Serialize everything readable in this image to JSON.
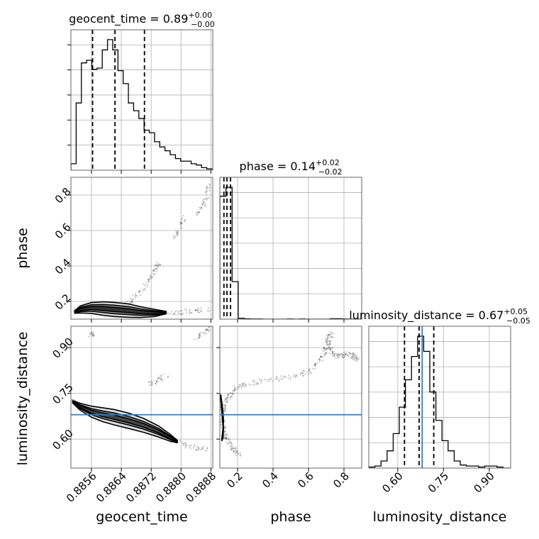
{
  "chart_data": {
    "type": "corner",
    "parameters": [
      "geocent_time",
      "phase",
      "luminosity_distance"
    ],
    "truth_color": "#3b7bbf",
    "truths": {
      "luminosity_distance": 0.68
    },
    "grid": true,
    "axes": {
      "geocent_time": {
        "range": [
          0.88505,
          0.88885
        ],
        "ticks": [
          0.8856,
          0.8864,
          0.8872,
          0.888,
          0.8888
        ],
        "tick_labels": [
          "0.8856",
          "0.8864",
          "0.8872",
          "0.8880",
          "0.8888"
        ]
      },
      "phase": {
        "range": [
          0.1,
          0.9
        ],
        "ticks": [
          0.2,
          0.4,
          0.6,
          0.8
        ],
        "tick_labels": [
          "0.2",
          "0.4",
          "0.6",
          "0.8"
        ]
      },
      "luminosity_distance": {
        "range": [
          0.505,
          0.97
        ],
        "ticks": [
          0.6,
          0.75,
          0.9
        ],
        "tick_labels": [
          "0.60",
          "0.75",
          "0.90"
        ]
      }
    },
    "diagonal": [
      {
        "parameter": "geocent_time",
        "title": "geocent_time = 0.89",
        "sup": "+0.00",
        "sub": "−0.00",
        "quantiles": [
          0.88563,
          0.88623,
          0.88702
        ],
        "bin_edges": [
          0.88505,
          0.88519,
          0.88533,
          0.88547,
          0.88561,
          0.88575,
          0.88589,
          0.88603,
          0.88617,
          0.88631,
          0.88645,
          0.88659,
          0.88673,
          0.88687,
          0.88701,
          0.88715,
          0.88729,
          0.88743,
          0.88757,
          0.88771,
          0.88785,
          0.88799,
          0.88813,
          0.88827,
          0.88841,
          0.88855,
          0.88869,
          0.88885
        ],
        "counts": [
          5,
          52,
          83,
          85,
          78,
          79,
          93,
          101,
          93,
          77,
          67,
          52,
          46,
          40,
          31,
          29,
          22,
          18,
          15,
          12,
          9,
          7,
          7,
          5,
          4,
          2,
          1
        ]
      },
      {
        "parameter": "phase",
        "title": "phase = 0.14",
        "sup": "+0.02",
        "sub": "−0.02",
        "quantiles": [
          0.123,
          0.14,
          0.16
        ],
        "bin_edges": [
          0.1,
          0.1345,
          0.169,
          0.2035,
          0.238,
          0.2725,
          0.307,
          0.3415,
          0.376,
          0.4105,
          0.445,
          0.4795,
          0.514,
          0.5485,
          0.583,
          0.6175,
          0.652,
          0.6865,
          0.721,
          0.7555,
          0.79,
          0.8245,
          0.859,
          0.9
        ],
        "counts": [
          820,
          880,
          250,
          6,
          2,
          1,
          1,
          0,
          0,
          0,
          0,
          1,
          0,
          1,
          0,
          0,
          0,
          0,
          3,
          3,
          1,
          0,
          0
        ]
      },
      {
        "parameter": "luminosity_distance",
        "title": "luminosity_distance = 0.67",
        "sup": "+0.05",
        "sub": "−0.05",
        "quantiles": [
          0.622,
          0.67,
          0.718
        ],
        "bin_edges": [
          0.505,
          0.525,
          0.545,
          0.565,
          0.585,
          0.605,
          0.625,
          0.645,
          0.665,
          0.685,
          0.705,
          0.725,
          0.745,
          0.765,
          0.785,
          0.805,
          0.825,
          0.845,
          0.865,
          0.885,
          0.905,
          0.925,
          0.945,
          0.97
        ],
        "counts": [
          1,
          2,
          7,
          17,
          34,
          60,
          87,
          110,
          130,
          115,
          75,
          47,
          27,
          17,
          7,
          3,
          2,
          2,
          1,
          2,
          2,
          1,
          0
        ]
      }
    ],
    "scatter_panels": [
      {
        "x": "geocent_time",
        "y": "phase",
        "tracks": [
          [
            [
              0.8851,
              0.15
            ],
            [
              0.8853,
              0.16
            ],
            [
              0.8856,
              0.165
            ],
            [
              0.8859,
              0.16
            ],
            [
              0.8862,
              0.15
            ],
            [
              0.8866,
              0.14
            ],
            [
              0.8869,
              0.13
            ],
            [
              0.8873,
              0.128
            ],
            [
              0.8877,
              0.132
            ],
            [
              0.888,
              0.14
            ],
            [
              0.8884,
              0.15
            ],
            [
              0.88875,
              0.155
            ]
          ],
          [
            [
              0.8863,
              0.155
            ],
            [
              0.8866,
              0.19
            ],
            [
              0.8868,
              0.23
            ],
            [
              0.887,
              0.28
            ],
            [
              0.8872,
              0.34
            ],
            [
              0.8873,
              0.38
            ],
            [
              0.8874,
              0.42
            ]
          ],
          [
            [
              0.8878,
              0.55
            ],
            [
              0.888,
              0.62
            ],
            [
              0.8881,
              0.68
            ]
          ],
          [
            [
              0.8884,
              0.68
            ],
            [
              0.8886,
              0.74
            ],
            [
              0.8887,
              0.8
            ],
            [
              0.88875,
              0.86
            ]
          ]
        ]
      },
      {
        "x": "geocent_time",
        "y": "luminosity_distance",
        "tracks": [
          [
            [
              0.88555,
              0.93
            ],
            [
              0.88565,
              0.95
            ]
          ],
          [
            [
              0.8851,
              0.725
            ],
            [
              0.88525,
              0.71
            ],
            [
              0.8855,
              0.695
            ],
            [
              0.88575,
              0.685
            ],
            [
              0.886,
              0.675
            ],
            [
              0.8863,
              0.665
            ],
            [
              0.8866,
              0.655
            ],
            [
              0.8869,
              0.64
            ],
            [
              0.8872,
              0.625
            ],
            [
              0.8875,
              0.61
            ],
            [
              0.8878,
              0.595
            ],
            [
              0.8881,
              0.582
            ],
            [
              0.8884,
              0.572
            ],
            [
              0.88875,
              0.565
            ]
          ],
          [
            [
              0.88715,
              0.78
            ],
            [
              0.8874,
              0.795
            ],
            [
              0.8876,
              0.81
            ]
          ],
          [
            [
              0.8884,
              0.93
            ],
            [
              0.8886,
              0.95
            ],
            [
              0.88875,
              0.965
            ]
          ]
        ]
      },
      {
        "x": "phase",
        "y": "luminosity_distance",
        "tracks": [
          [
            [
              0.11,
              0.68
            ],
            [
              0.12,
              0.7
            ],
            [
              0.13,
              0.72
            ],
            [
              0.15,
              0.74
            ],
            [
              0.18,
              0.76
            ],
            [
              0.22,
              0.775
            ],
            [
              0.28,
              0.785
            ],
            [
              0.35,
              0.79
            ],
            [
              0.45,
              0.8
            ],
            [
              0.55,
              0.81
            ],
            [
              0.6,
              0.82
            ],
            [
              0.65,
              0.85
            ],
            [
              0.69,
              0.88
            ],
            [
              0.7,
              0.9
            ],
            [
              0.72,
              0.93
            ],
            [
              0.73,
              0.95
            ]
          ],
          [
            [
              0.11,
              0.67
            ],
            [
              0.12,
              0.64
            ],
            [
              0.13,
              0.62
            ],
            [
              0.14,
              0.6
            ],
            [
              0.16,
              0.58
            ],
            [
              0.18,
              0.565
            ],
            [
              0.21,
              0.55
            ]
          ],
          [
            [
              0.7,
              0.935
            ],
            [
              0.72,
              0.9
            ],
            [
              0.74,
              0.88
            ],
            [
              0.76,
              0.87
            ],
            [
              0.8,
              0.875
            ],
            [
              0.83,
              0.88
            ],
            [
              0.86,
              0.87
            ],
            [
              0.88,
              0.86
            ]
          ]
        ]
      }
    ]
  }
}
